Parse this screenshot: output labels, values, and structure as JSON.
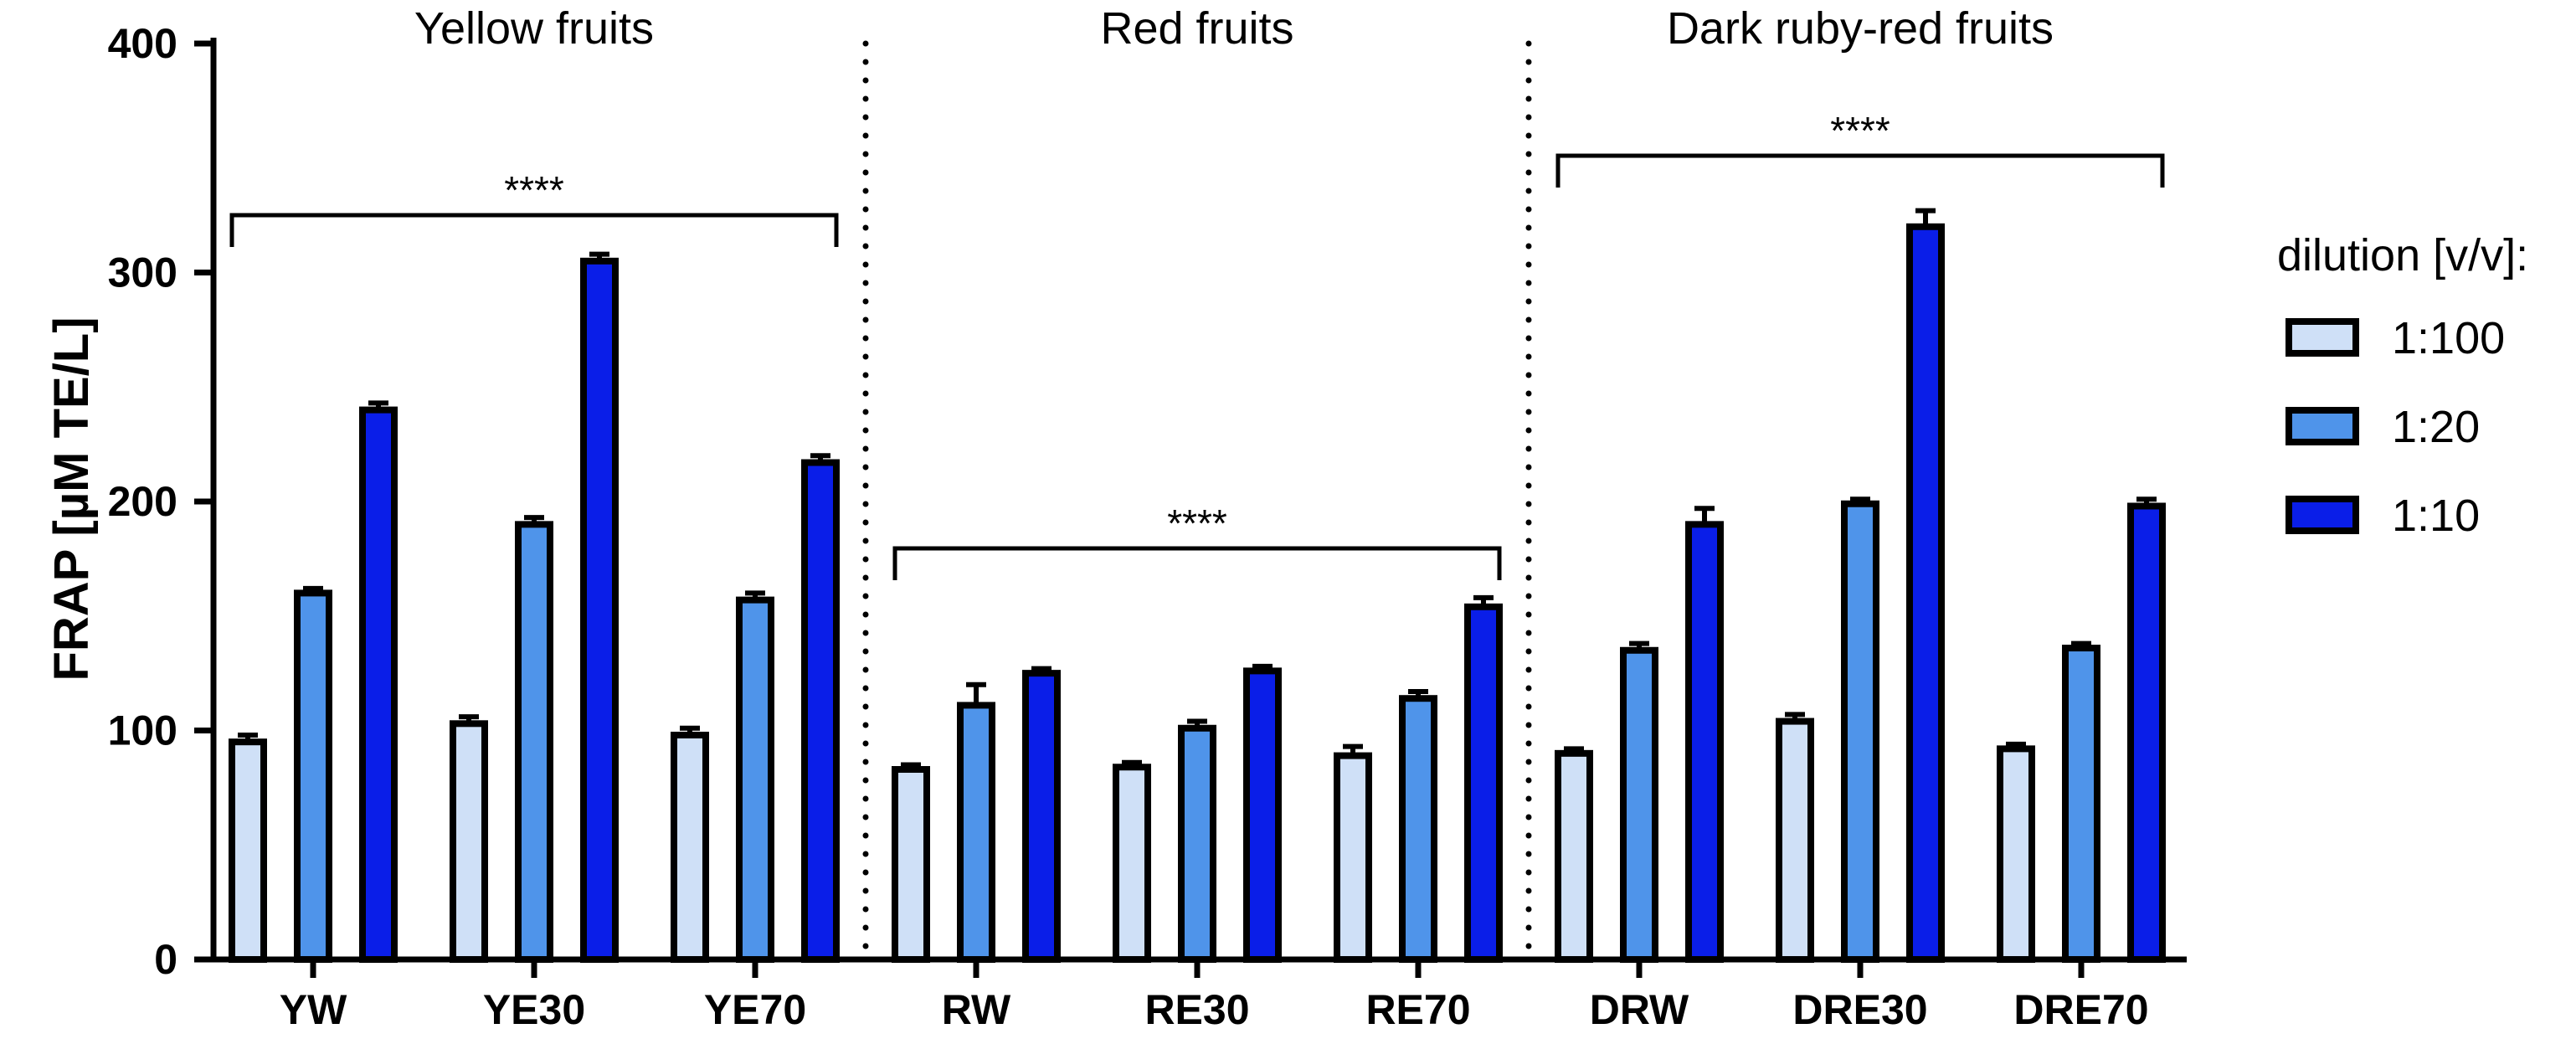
{
  "chart_data": {
    "type": "bar",
    "ylabel": "FRAP [µM TE/L]",
    "ylim": [
      0,
      400
    ],
    "yticks": [
      "0",
      "100",
      "200",
      "300",
      "400"
    ],
    "categories": [
      "YW",
      "YE30",
      "YE70",
      "RW",
      "RE30",
      "RE70",
      "DRW",
      "DRE30",
      "DRE70"
    ],
    "series": [
      {
        "name": "1:100",
        "color": "#cfe0f7",
        "values": [
          95,
          103,
          98,
          83,
          84,
          89,
          90,
          104,
          92
        ],
        "errors": [
          3,
          3,
          3,
          2,
          2,
          4,
          2,
          3,
          2
        ]
      },
      {
        "name": "1:20",
        "color": "#4f94ea",
        "values": [
          160,
          190,
          157,
          111,
          101,
          114,
          135,
          199,
          136
        ],
        "errors": [
          2,
          3,
          3,
          9,
          3,
          3,
          3,
          2,
          2
        ]
      },
      {
        "name": "1:10",
        "color": "#0a1ee8",
        "values": [
          240,
          305,
          217,
          125,
          126,
          154,
          190,
          320,
          198
        ],
        "errors": [
          3,
          3,
          3,
          2,
          2,
          4,
          7,
          7,
          3
        ]
      }
    ],
    "groups": [
      {
        "title": "Yellow fruits",
        "categories": [
          "YW",
          "YE30",
          "YE70"
        ],
        "significance": "****"
      },
      {
        "title": "Red fruits",
        "categories": [
          "RW",
          "RE30",
          "RE70"
        ],
        "significance": "****"
      },
      {
        "title": "Dark ruby-red fruits",
        "categories": [
          "DRW",
          "DRE30",
          "DRE70"
        ],
        "significance": "****"
      }
    ],
    "legend": {
      "title": "dilution [v/v]:",
      "position": "right"
    }
  }
}
